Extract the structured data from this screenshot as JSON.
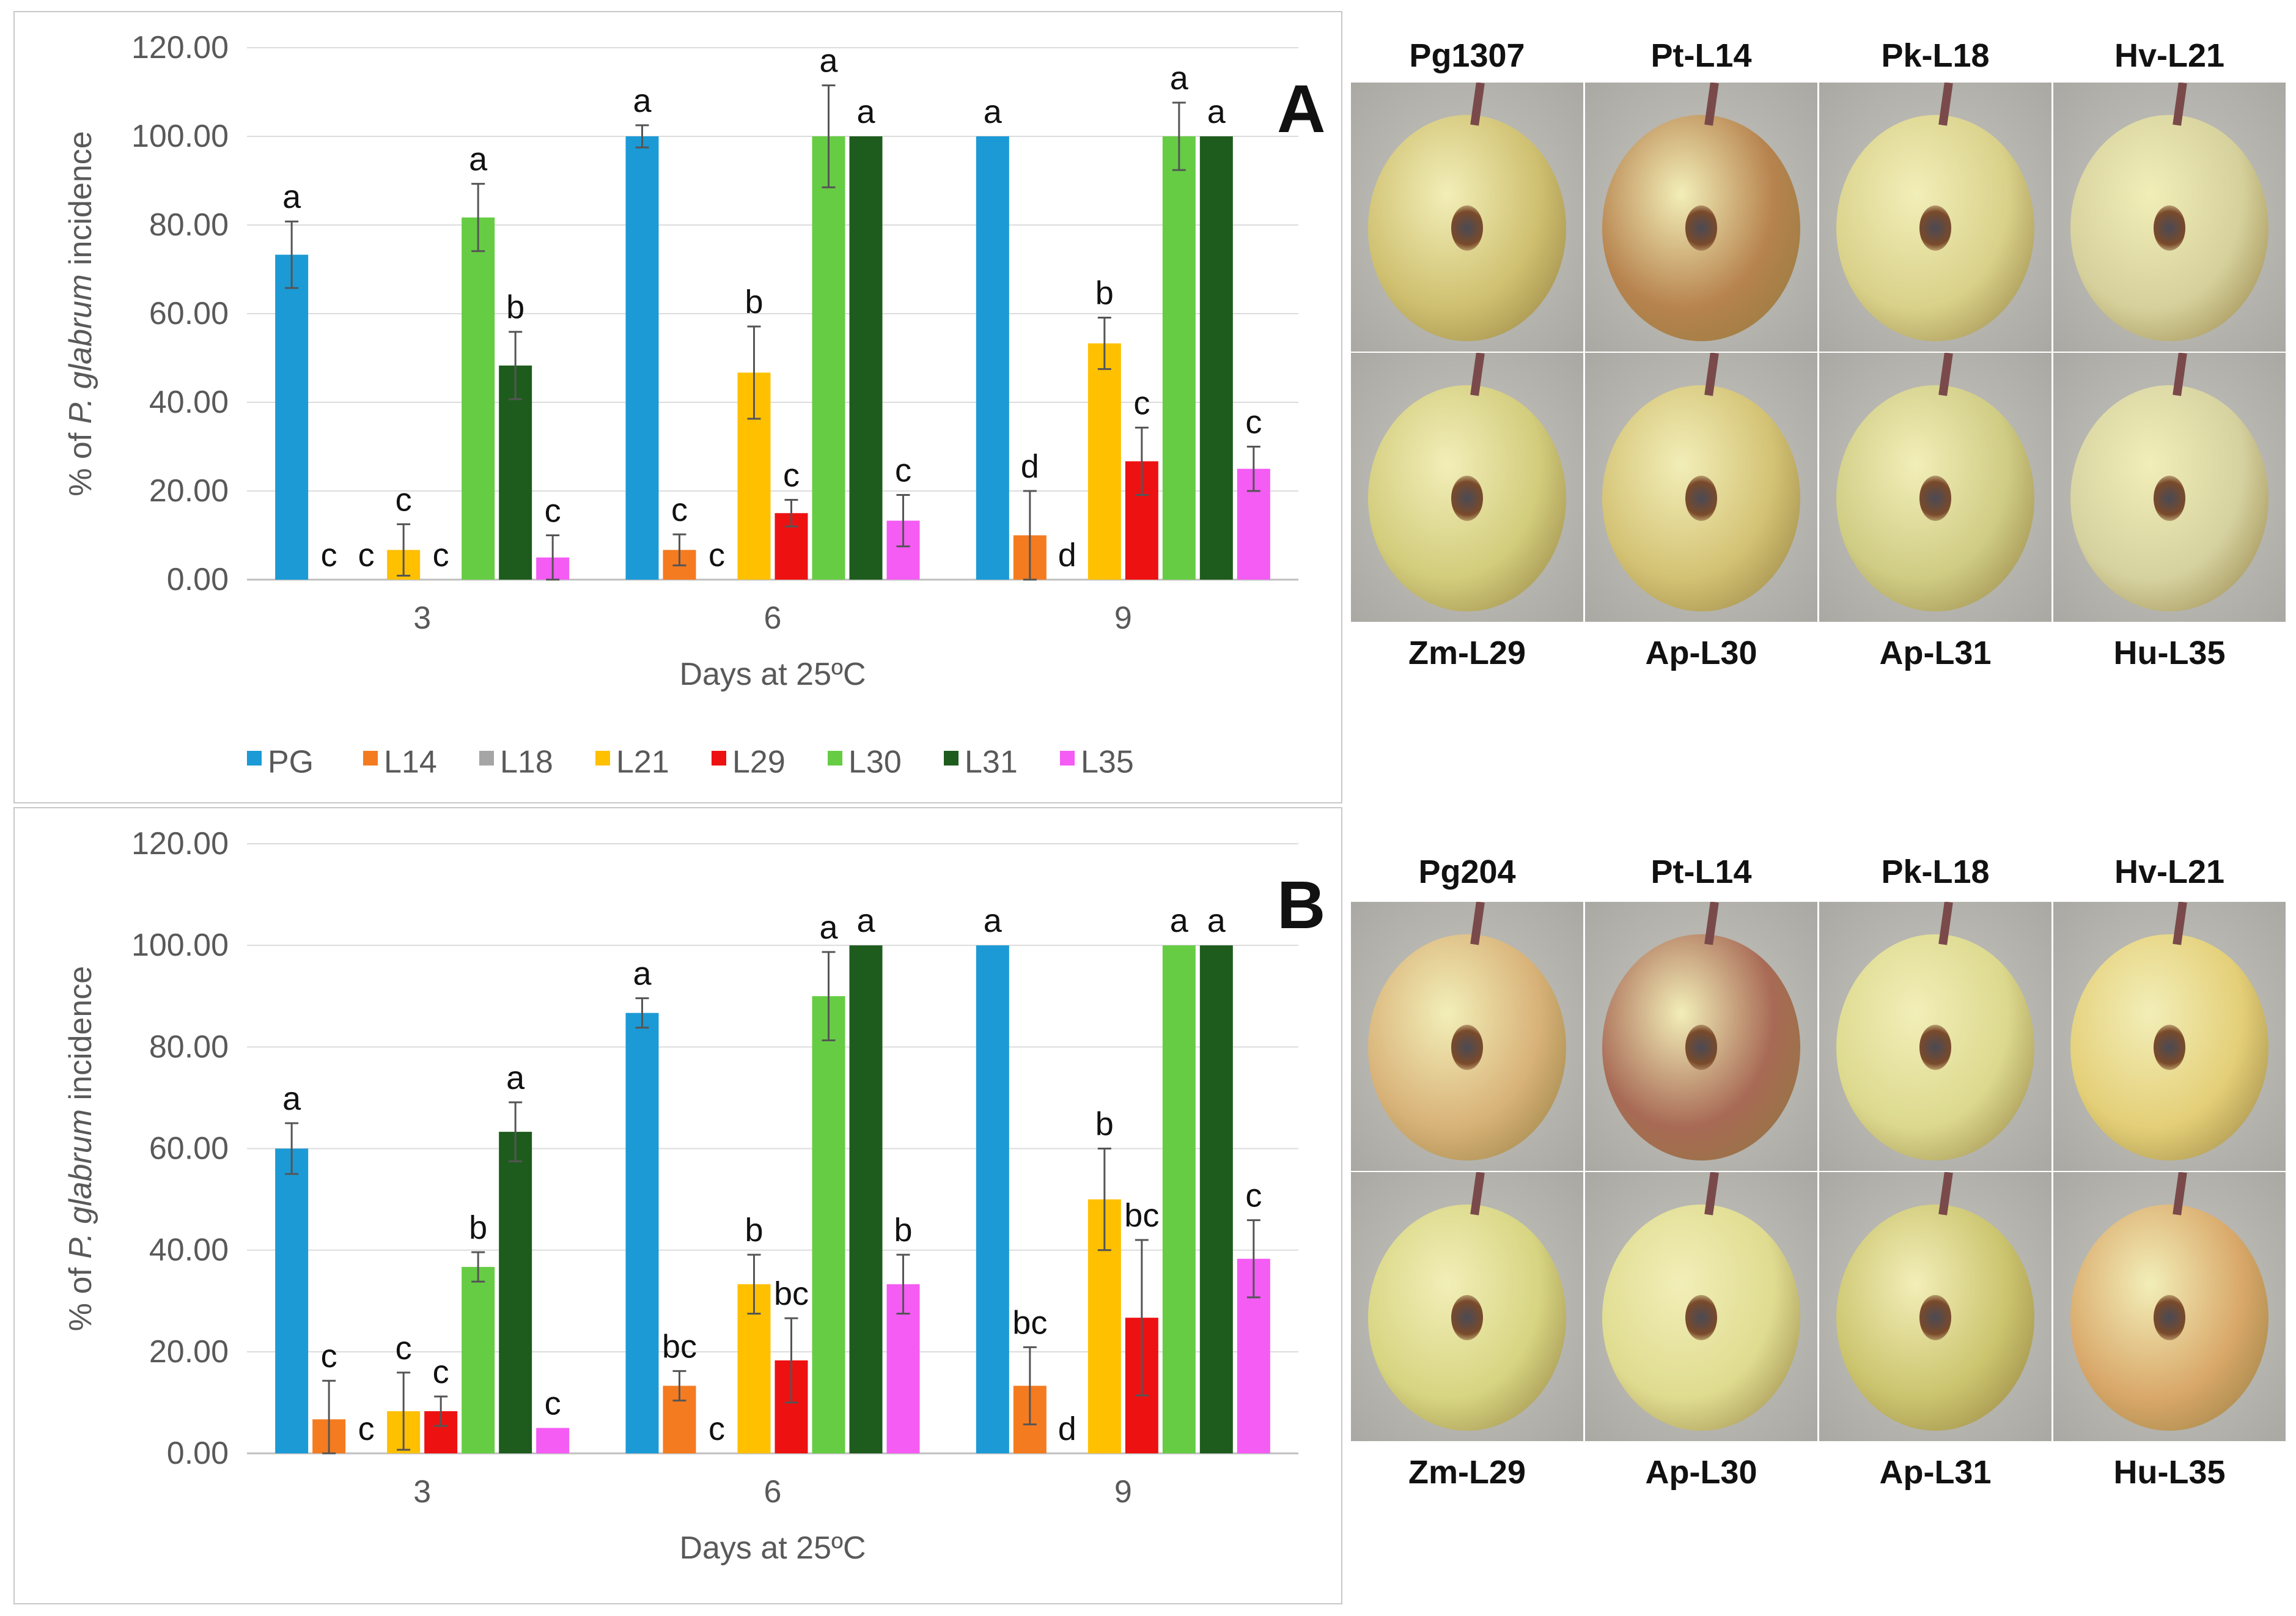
{
  "panels": [
    {
      "letter": "A",
      "chart_data": {
        "type": "bar",
        "title": "",
        "xlabel": "Days at 25ºC",
        "ylabel_prefix": "% of ",
        "ylabel_italic": "P. glabrum",
        "ylabel_suffix": " incidence",
        "ylim": [
          0,
          120
        ],
        "yticks": [
          "0.00",
          "20.00",
          "40.00",
          "60.00",
          "80.00",
          "100.00",
          "120.00"
        ],
        "categories": [
          "3",
          "6",
          "9"
        ],
        "series": [
          {
            "name": "PG",
            "color": "#1b9ad6",
            "values": [
              73.3,
              100,
              100
            ],
            "errors": [
              7.5,
              2.5,
              0
            ],
            "letters": [
              "a",
              "a",
              "a"
            ]
          },
          {
            "name": "L14",
            "color": "#f47b20",
            "values": [
              0,
              6.7,
              10
            ],
            "errors": [
              0,
              3.5,
              10
            ],
            "letters": [
              "c",
              "c",
              "d"
            ]
          },
          {
            "name": "L18",
            "color": "#a5a5a5",
            "values": [
              0,
              0,
              0
            ],
            "errors": [
              0,
              0,
              0
            ],
            "letters": [
              "c",
              "c",
              "d"
            ]
          },
          {
            "name": "L21",
            "color": "#ffc000",
            "values": [
              6.7,
              46.7,
              53.3
            ],
            "errors": [
              5.8,
              10.4,
              5.8
            ],
            "letters": [
              "c",
              "b",
              "b"
            ]
          },
          {
            "name": "L29",
            "color": "#ee1111",
            "values": [
              0,
              15,
              26.7
            ],
            "errors": [
              0,
              3,
              7.6
            ],
            "letters": [
              "c",
              "c",
              "c"
            ]
          },
          {
            "name": "L30",
            "color": "#66cc44",
            "values": [
              81.7,
              100,
              100
            ],
            "errors": [
              7.6,
              11.5,
              7.6
            ],
            "letters": [
              "a",
              "a",
              "a"
            ]
          },
          {
            "name": "L31",
            "color": "#1e5c1e",
            "values": [
              48.3,
              100,
              100
            ],
            "errors": [
              7.6,
              0,
              0
            ],
            "letters": [
              "b",
              "a",
              "a"
            ]
          },
          {
            "name": "L35",
            "color": "#f45cf4",
            "values": [
              5,
              13.3,
              25
            ],
            "errors": [
              5,
              5.8,
              5
            ],
            "letters": [
              "c",
              "c",
              "c"
            ]
          }
        ],
        "legend_position": "bottom"
      },
      "photos": {
        "top_labels": [
          "Pg1307",
          "Pt-L14",
          "Pk-L18",
          "Hv-L21"
        ],
        "bottom_labels": [
          "Zm-L29",
          "Ap-L30",
          "Ap-L31",
          "Hu-L35"
        ],
        "top_colors": [
          "#cfc070",
          "#b7834e",
          "#d9d18a",
          "#d6d19c"
        ],
        "bottom_colors": [
          "#d2cc7c",
          "#d3c274",
          "#cfcc84",
          "#d6d2a0"
        ]
      }
    },
    {
      "letter": "B",
      "chart_data": {
        "type": "bar",
        "title": "",
        "xlabel": "Days at 25ºC",
        "ylabel_prefix": "% of ",
        "ylabel_italic": "P. glabrum",
        "ylabel_suffix": " incidence",
        "ylim": [
          0,
          120
        ],
        "yticks": [
          "0.00",
          "20.00",
          "40.00",
          "60.00",
          "80.00",
          "100.00",
          "120.00"
        ],
        "categories": [
          "3",
          "6",
          "9"
        ],
        "series": [
          {
            "name": "PG",
            "color": "#1b9ad6",
            "values": [
              60,
              86.7,
              100
            ],
            "errors": [
              5,
              2.9,
              0
            ],
            "letters": [
              "a",
              "a",
              "a"
            ]
          },
          {
            "name": "L14",
            "color": "#f47b20",
            "values": [
              6.7,
              13.3,
              13.3
            ],
            "errors": [
              7.6,
              2.9,
              7.6
            ],
            "letters": [
              "c",
              "bc",
              "bc"
            ]
          },
          {
            "name": "L18",
            "color": "#a5a5a5",
            "values": [
              0,
              0,
              0
            ],
            "errors": [
              0,
              0,
              0
            ],
            "letters": [
              "c",
              "c",
              "d"
            ]
          },
          {
            "name": "L21",
            "color": "#ffc000",
            "values": [
              8.3,
              33.3,
              50
            ],
            "errors": [
              7.6,
              5.8,
              10
            ],
            "letters": [
              "c",
              "b",
              "b"
            ]
          },
          {
            "name": "L29",
            "color": "#ee1111",
            "values": [
              8.3,
              18.3,
              26.7
            ],
            "errors": [
              2.9,
              8.3,
              15.3
            ],
            "letters": [
              "c",
              "bc",
              "bc"
            ]
          },
          {
            "name": "L30",
            "color": "#66cc44",
            "values": [
              36.7,
              90,
              100
            ],
            "errors": [
              2.9,
              8.7,
              0
            ],
            "letters": [
              "b",
              "a",
              "a"
            ]
          },
          {
            "name": "L31",
            "color": "#1e5c1e",
            "values": [
              63.3,
              100,
              100
            ],
            "errors": [
              5.8,
              0,
              0
            ],
            "letters": [
              "a",
              "a",
              "a"
            ]
          },
          {
            "name": "L35",
            "color": "#f45cf4",
            "values": [
              5,
              33.3,
              38.3
            ],
            "errors": [
              0,
              5.8,
              7.6
            ],
            "letters": [
              "c",
              "b",
              "c"
            ]
          }
        ],
        "legend_position": "none"
      },
      "photos": {
        "top_labels": [
          "Pg204",
          "Pt-L14",
          "Pk-L18",
          "Hv-L21"
        ],
        "bottom_labels": [
          "Zm-L29",
          "Ap-L30",
          "Ap-L31",
          "Hu-L35"
        ],
        "top_colors": [
          "#d8b278",
          "#a86a55",
          "#dcd98e",
          "#e4cf78"
        ],
        "bottom_colors": [
          "#d7d582",
          "#dfdc90",
          "#cbc46e",
          "#d9a86a"
        ]
      }
    }
  ]
}
